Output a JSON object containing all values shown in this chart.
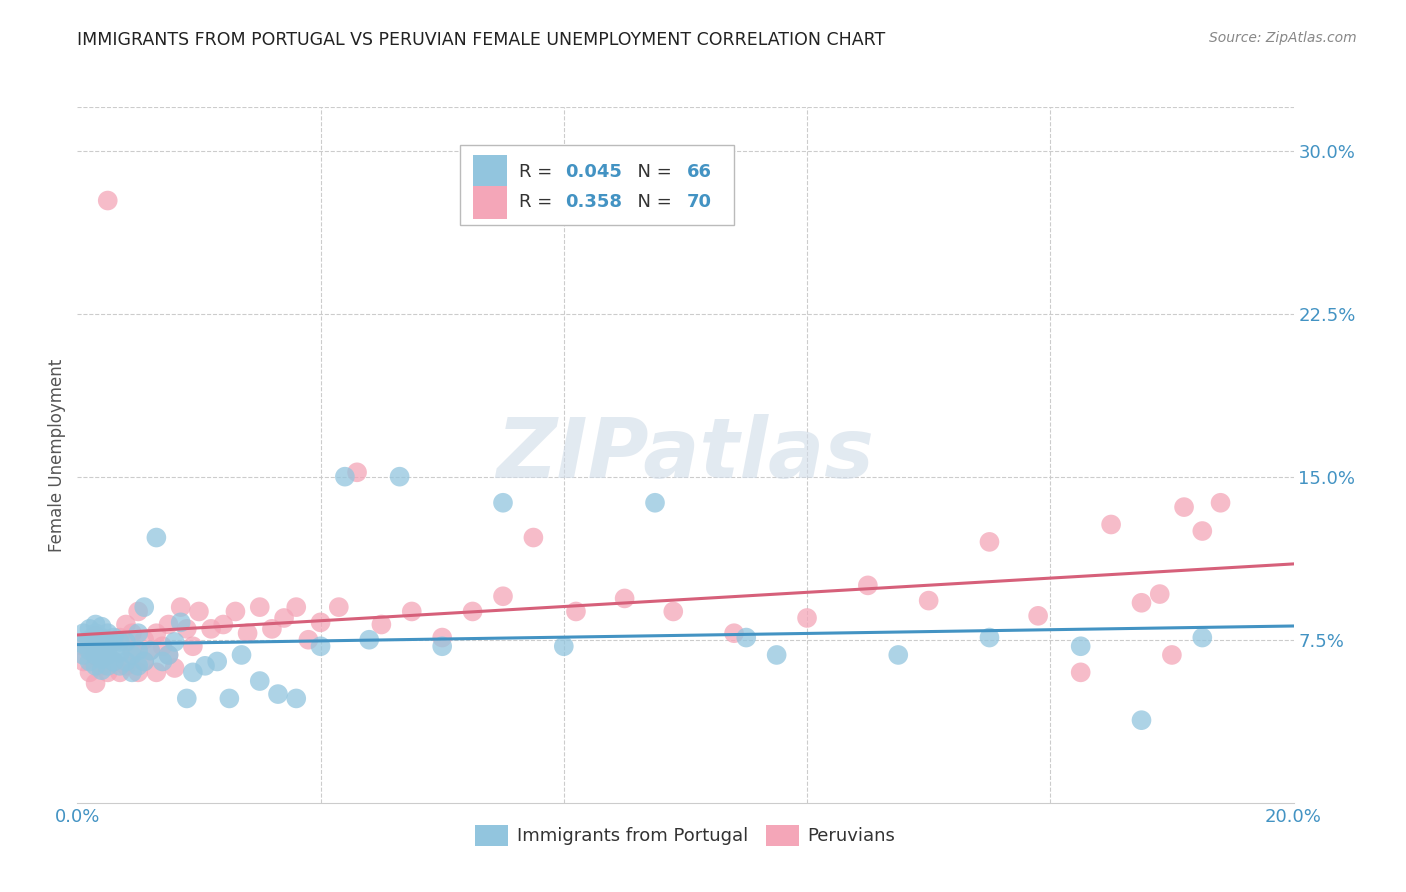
{
  "title": "IMMIGRANTS FROM PORTUGAL VS PERUVIAN FEMALE UNEMPLOYMENT CORRELATION CHART",
  "source": "Source: ZipAtlas.com",
  "ylabel": "Female Unemployment",
  "xlim": [
    0.0,
    0.2
  ],
  "ylim": [
    0.0,
    0.32
  ],
  "ytick_labels_right": [
    "7.5%",
    "15.0%",
    "22.5%",
    "30.0%"
  ],
  "ytick_positions_right": [
    0.075,
    0.15,
    0.225,
    0.3
  ],
  "legend_label1": "Immigrants from Portugal",
  "legend_label2": "Peruvians",
  "r1": "0.045",
  "n1": "66",
  "r2": "0.358",
  "n2": "70",
  "color_blue": "#92c5de",
  "color_pink": "#f4a6b8",
  "line_blue": "#4393c3",
  "line_pink": "#d6607a",
  "background": "#ffffff",
  "grid_color": "#cccccc",
  "title_color": "#222222",
  "axis_label_color": "#4393c3",
  "blue_pts_x": [
    0.001,
    0.001,
    0.001,
    0.002,
    0.002,
    0.002,
    0.002,
    0.003,
    0.003,
    0.003,
    0.003,
    0.003,
    0.004,
    0.004,
    0.004,
    0.004,
    0.004,
    0.005,
    0.005,
    0.005,
    0.005,
    0.006,
    0.006,
    0.006,
    0.007,
    0.007,
    0.007,
    0.008,
    0.008,
    0.009,
    0.009,
    0.01,
    0.01,
    0.01,
    0.011,
    0.011,
    0.012,
    0.013,
    0.014,
    0.015,
    0.016,
    0.017,
    0.018,
    0.019,
    0.021,
    0.023,
    0.025,
    0.027,
    0.03,
    0.033,
    0.036,
    0.04,
    0.044,
    0.048,
    0.053,
    0.06,
    0.07,
    0.08,
    0.095,
    0.11,
    0.115,
    0.135,
    0.15,
    0.165,
    0.175,
    0.185
  ],
  "blue_pts_y": [
    0.068,
    0.073,
    0.078,
    0.065,
    0.07,
    0.075,
    0.08,
    0.063,
    0.068,
    0.073,
    0.078,
    0.082,
    0.061,
    0.066,
    0.071,
    0.076,
    0.081,
    0.063,
    0.068,
    0.073,
    0.078,
    0.065,
    0.07,
    0.076,
    0.063,
    0.069,
    0.074,
    0.065,
    0.074,
    0.06,
    0.068,
    0.063,
    0.07,
    0.078,
    0.065,
    0.09,
    0.07,
    0.122,
    0.065,
    0.068,
    0.074,
    0.083,
    0.048,
    0.06,
    0.063,
    0.065,
    0.048,
    0.068,
    0.056,
    0.05,
    0.048,
    0.072,
    0.15,
    0.075,
    0.15,
    0.072,
    0.138,
    0.072,
    0.138,
    0.076,
    0.068,
    0.068,
    0.076,
    0.072,
    0.038,
    0.076
  ],
  "pink_pts_x": [
    0.001,
    0.001,
    0.002,
    0.002,
    0.003,
    0.003,
    0.003,
    0.004,
    0.004,
    0.005,
    0.005,
    0.005,
    0.006,
    0.006,
    0.007,
    0.007,
    0.008,
    0.008,
    0.009,
    0.009,
    0.01,
    0.01,
    0.011,
    0.011,
    0.012,
    0.013,
    0.013,
    0.014,
    0.015,
    0.015,
    0.016,
    0.017,
    0.018,
    0.019,
    0.02,
    0.022,
    0.024,
    0.026,
    0.028,
    0.03,
    0.032,
    0.034,
    0.036,
    0.038,
    0.04,
    0.043,
    0.046,
    0.05,
    0.055,
    0.06,
    0.065,
    0.07,
    0.075,
    0.082,
    0.09,
    0.098,
    0.108,
    0.12,
    0.13,
    0.14,
    0.15,
    0.158,
    0.165,
    0.17,
    0.175,
    0.178,
    0.18,
    0.182,
    0.185,
    0.188
  ],
  "pink_pts_y": [
    0.065,
    0.072,
    0.06,
    0.073,
    0.055,
    0.068,
    0.077,
    0.063,
    0.075,
    0.06,
    0.068,
    0.277,
    0.065,
    0.074,
    0.06,
    0.076,
    0.063,
    0.082,
    0.07,
    0.078,
    0.06,
    0.088,
    0.065,
    0.075,
    0.07,
    0.078,
    0.06,
    0.072,
    0.068,
    0.082,
    0.062,
    0.09,
    0.08,
    0.072,
    0.088,
    0.08,
    0.082,
    0.088,
    0.078,
    0.09,
    0.08,
    0.085,
    0.09,
    0.075,
    0.083,
    0.09,
    0.152,
    0.082,
    0.088,
    0.076,
    0.088,
    0.095,
    0.122,
    0.088,
    0.094,
    0.088,
    0.078,
    0.085,
    0.1,
    0.093,
    0.12,
    0.086,
    0.06,
    0.128,
    0.092,
    0.096,
    0.068,
    0.136,
    0.125,
    0.138
  ]
}
